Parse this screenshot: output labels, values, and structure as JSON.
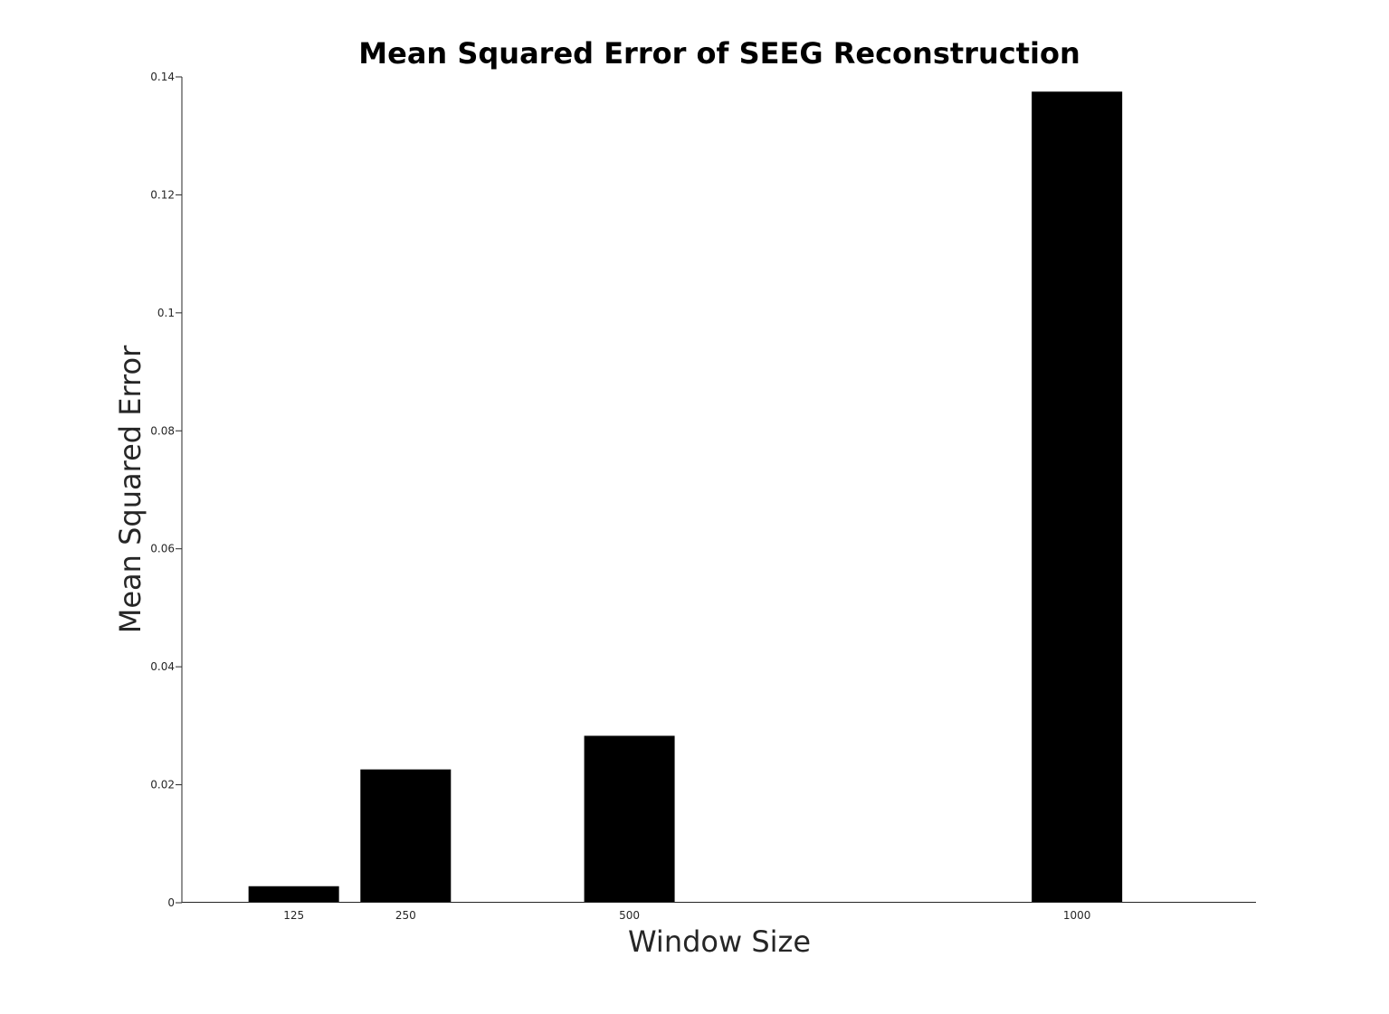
{
  "chart_data": {
    "type": "bar",
    "title": "Mean Squared Error of SEEG Reconstruction",
    "xlabel": "Window Size",
    "ylabel": "Mean Squared Error",
    "x": [
      125,
      250,
      500,
      1000
    ],
    "x_tick_labels": [
      "125",
      "250",
      "500",
      "1000"
    ],
    "values": [
      0.0028,
      0.0226,
      0.0283,
      0.1375
    ],
    "xlim": [
      0,
      1200
    ],
    "ylim": [
      0,
      0.14
    ],
    "y_ticks": [
      0,
      0.02,
      0.04,
      0.06,
      0.08,
      0.1,
      0.12,
      0.14
    ],
    "y_tick_labels": [
      "0",
      "0.02",
      "0.04",
      "0.06",
      "0.08",
      "0.1",
      "0.12",
      "0.14"
    ],
    "bar_color": "#000000",
    "grid": false,
    "legend": "none"
  }
}
